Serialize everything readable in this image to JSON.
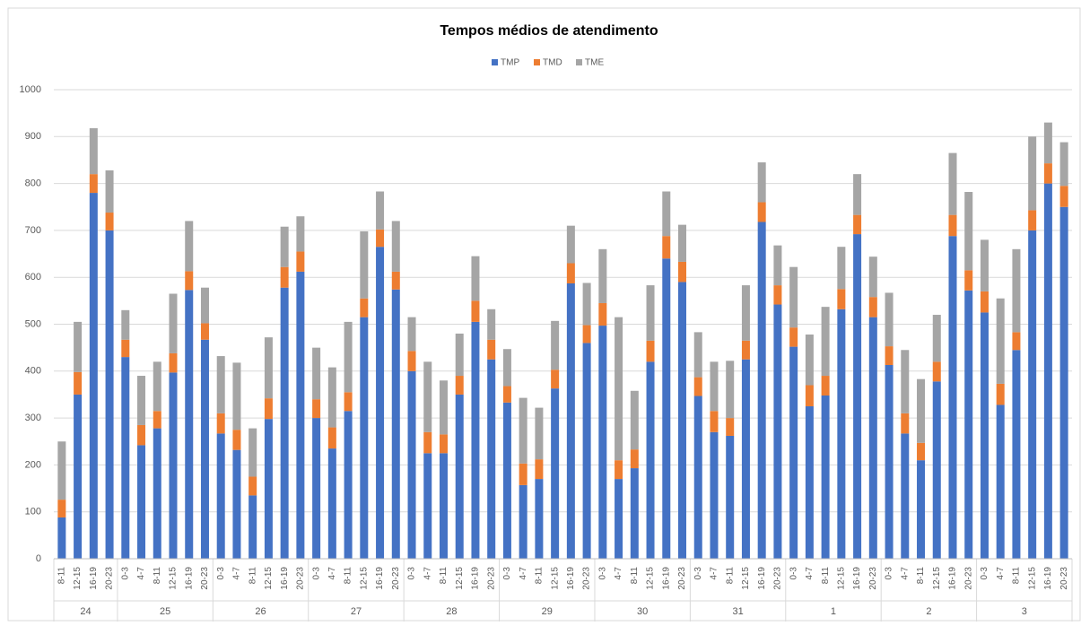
{
  "chart_data": {
    "type": "stacked_bar",
    "title": "Tempos médios de atendimento",
    "groups": [
      {
        "name": "24",
        "categories": [
          "8-11",
          "12-15",
          "16-19",
          "20-23"
        ]
      },
      {
        "name": "25",
        "categories": [
          "0-3",
          "4-7",
          "8-11",
          "12-15",
          "16-19",
          "20-23"
        ]
      },
      {
        "name": "26",
        "categories": [
          "0-3",
          "4-7",
          "8-11",
          "12-15",
          "16-19",
          "20-23"
        ]
      },
      {
        "name": "27",
        "categories": [
          "0-3",
          "4-7",
          "8-11",
          "12-15",
          "16-19",
          "20-23"
        ]
      },
      {
        "name": "28",
        "categories": [
          "0-3",
          "4-7",
          "8-11",
          "12-15",
          "16-19",
          "20-23"
        ]
      },
      {
        "name": "29",
        "categories": [
          "0-3",
          "4-7",
          "8-11",
          "12-15",
          "16-19",
          "20-23"
        ]
      },
      {
        "name": "30",
        "categories": [
          "0-3",
          "4-7",
          "8-11",
          "12-15",
          "16-19",
          "20-23"
        ]
      },
      {
        "name": "31",
        "categories": [
          "0-3",
          "4-7",
          "8-11",
          "12-15",
          "16-19",
          "20-23"
        ]
      },
      {
        "name": "1",
        "categories": [
          "0-3",
          "4-7",
          "8-11",
          "12-15",
          "16-19",
          "20-23"
        ]
      },
      {
        "name": "2",
        "categories": [
          "0-3",
          "4-7",
          "8-11",
          "12-15",
          "16-19",
          "20-23"
        ]
      },
      {
        "name": "3",
        "categories": [
          "0-3",
          "4-7",
          "8-11",
          "12-15",
          "16-19",
          "20-23"
        ]
      }
    ],
    "series": [
      {
        "name": "TMP",
        "color": "#4472c4",
        "values": [
          88,
          350,
          780,
          700,
          430,
          242,
          278,
          397,
          573,
          467,
          267,
          232,
          135,
          298,
          578,
          612,
          300,
          235,
          315,
          515,
          665,
          574,
          400,
          225,
          225,
          350,
          505,
          425,
          333,
          157,
          170,
          363,
          587,
          460,
          497,
          170,
          193,
          420,
          640,
          590,
          347,
          270,
          262,
          425,
          718,
          542,
          452,
          325,
          348,
          532,
          692,
          515,
          413,
          267,
          210,
          378,
          688,
          572,
          525,
          328,
          445,
          700,
          800,
          750
        ]
      },
      {
        "name": "TMD",
        "color": "#ed7d31",
        "values": [
          38,
          48,
          40,
          38,
          37,
          43,
          37,
          41,
          40,
          35,
          43,
          43,
          40,
          44,
          44,
          43,
          40,
          45,
          40,
          40,
          37,
          38,
          43,
          45,
          40,
          40,
          45,
          42,
          35,
          46,
          42,
          40,
          43,
          38,
          48,
          40,
          40,
          45,
          48,
          43,
          40,
          45,
          38,
          40,
          42,
          41,
          41,
          45,
          42,
          43,
          41,
          43,
          40,
          43,
          37,
          42,
          45,
          43,
          45,
          45,
          38,
          43,
          43,
          45
        ]
      },
      {
        "name": "TME",
        "color": "#a5a5a5",
        "values": [
          124,
          107,
          98,
          90,
          63,
          105,
          105,
          127,
          107,
          76,
          122,
          143,
          103,
          130,
          86,
          75,
          110,
          128,
          150,
          143,
          81,
          108,
          72,
          150,
          115,
          90,
          95,
          65,
          79,
          140,
          110,
          104,
          80,
          90,
          115,
          305,
          125,
          118,
          95,
          79,
          96,
          105,
          122,
          118,
          85,
          85,
          129,
          108,
          147,
          90,
          87,
          86,
          114,
          135,
          136,
          100,
          132,
          167,
          110,
          182,
          177,
          157,
          87,
          93
        ]
      }
    ],
    "ylim": [
      0,
      1000
    ],
    "yticks": [
      0,
      100,
      200,
      300,
      400,
      500,
      600,
      700,
      800,
      900,
      1000
    ],
    "grid": true,
    "legend": "top"
  }
}
